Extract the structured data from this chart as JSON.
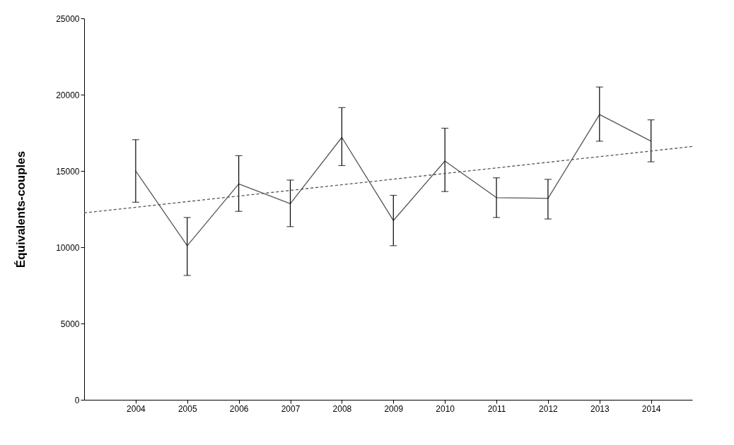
{
  "chart_data": {
    "type": "line",
    "ylabel": "Équivalents-couples",
    "x": [
      2004,
      2005,
      2006,
      2007,
      2008,
      2009,
      2010,
      2011,
      2012,
      2013,
      2014
    ],
    "series": [
      {
        "color": "#555555",
        "values": [
          15000,
          10100,
          14150,
          12850,
          17200,
          11750,
          15650,
          13250,
          13200,
          18700,
          16950
        ],
        "errors": [
          [
            12950,
            17050
          ],
          [
            8150,
            11950
          ],
          [
            12350,
            16000
          ],
          [
            11350,
            14400
          ],
          [
            15350,
            19150
          ],
          [
            10100,
            13400
          ],
          [
            13650,
            17800
          ],
          [
            11950,
            14550
          ],
          [
            11850,
            14450
          ],
          [
            16950,
            20500
          ],
          [
            15600,
            18350
          ]
        ]
      },
      {
        "type": "line",
        "color": "#555555",
        "line_style": "dashed",
        "x": [
          2003,
          2014.8
        ],
        "values": [
          12250,
          16600
        ]
      }
    ],
    "xlim": [
      2003,
      2014.8
    ],
    "xticks": [
      2004,
      2005,
      2006,
      2007,
      2008,
      2009,
      2010,
      2011,
      2012,
      2013,
      2014
    ],
    "ylim": [
      0,
      25000
    ],
    "yticks": [
      0,
      5000,
      10000,
      15000,
      20000,
      25000
    ],
    "grid": false,
    "marker": "none",
    "line_style": "solid"
  }
}
